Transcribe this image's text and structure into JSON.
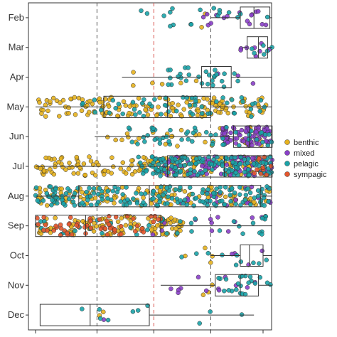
{
  "chart_data": {
    "type": "scatter",
    "subtype": "horizontal boxplot with jittered points",
    "title": "",
    "xlabel": "",
    "ylabel": "",
    "categories": [
      "Feb",
      "Mar",
      "Apr",
      "May",
      "Jun",
      "Jul",
      "Aug",
      "Sep",
      "Oct",
      "Nov",
      "Dec"
    ],
    "x_range": [
      0,
      1
    ],
    "reference_lines": [
      {
        "x": 0.27,
        "style": "dashed",
        "color": "#555555"
      },
      {
        "x": 0.52,
        "style": "dashed",
        "color": "#d9534f"
      },
      {
        "x": 0.77,
        "style": "dashed",
        "color": "#555555"
      }
    ],
    "boxes": [
      {
        "month": "Feb",
        "min": 0.77,
        "q1": 0.9,
        "median": 0.96,
        "q3": 1.03,
        "max": 1.04
      },
      {
        "month": "Mar",
        "min": 0.91,
        "q1": 0.93,
        "median": 0.98,
        "q3": 1.02,
        "max": 1.04
      },
      {
        "month": "Apr",
        "min": 0.38,
        "q1": 0.73,
        "median": 0.77,
        "q3": 0.86,
        "max": 1.04
      },
      {
        "month": "May",
        "min": 0.0,
        "q1": 0.3,
        "median": 0.58,
        "q3": 0.77,
        "max": 1.04
      },
      {
        "month": "Jun",
        "min": 0.26,
        "q1": 0.87,
        "median": 0.94,
        "q3": 1.04,
        "max": 1.04
      },
      {
        "month": "Jul",
        "min": 0.0,
        "q1": 0.58,
        "median": 0.83,
        "q3": 1.04,
        "max": 1.04
      },
      {
        "month": "Aug",
        "min": 0.0,
        "q1": 0.19,
        "median": 0.5,
        "q3": 0.99,
        "max": 1.04
      },
      {
        "month": "Sep",
        "min": 0.0,
        "q1": 0.0,
        "median": 0.22,
        "q3": 0.55,
        "max": 1.04
      },
      {
        "month": "Oct",
        "min": 0.77,
        "q1": 0.9,
        "median": 0.94,
        "q3": 1.0,
        "max": 1.04
      },
      {
        "month": "Nov",
        "min": 0.55,
        "q1": 0.79,
        "median": 0.9,
        "q3": 0.98,
        "max": 1.04
      },
      {
        "month": "Dec",
        "min": 0.02,
        "q1": 0.02,
        "median": 0.24,
        "q3": 0.5,
        "max": 0.96
      }
    ],
    "point_clusters": [
      {
        "month": "Feb",
        "groups": [
          {
            "habitat": "benthic",
            "n": 2,
            "from": 0.3,
            "to": 0.98
          },
          {
            "habitat": "mixed",
            "n": 16,
            "from": 0.7,
            "to": 1.04
          },
          {
            "habitat": "pelagic",
            "n": 18,
            "from": 0.27,
            "to": 1.04
          }
        ]
      },
      {
        "month": "Mar",
        "groups": [
          {
            "habitat": "mixed",
            "n": 8,
            "from": 0.9,
            "to": 1.04
          },
          {
            "habitat": "pelagic",
            "n": 6,
            "from": 0.93,
            "to": 1.04
          }
        ]
      },
      {
        "month": "Apr",
        "groups": [
          {
            "habitat": "benthic",
            "n": 6,
            "from": 0.38,
            "to": 0.95
          },
          {
            "habitat": "mixed",
            "n": 3,
            "from": 0.8,
            "to": 1.02
          },
          {
            "habitat": "pelagic",
            "n": 28,
            "from": 0.55,
            "to": 0.9
          }
        ]
      },
      {
        "month": "May",
        "groups": [
          {
            "habitat": "benthic",
            "n": 150,
            "from": 0.0,
            "to": 1.02
          },
          {
            "habitat": "pelagic",
            "n": 55,
            "from": 0.2,
            "to": 1.04
          }
        ]
      },
      {
        "month": "Jun",
        "groups": [
          {
            "habitat": "benthic",
            "n": 30,
            "from": 0.25,
            "to": 1.0
          },
          {
            "habitat": "mixed",
            "n": 80,
            "from": 0.82,
            "to": 1.04
          },
          {
            "habitat": "pelagic",
            "n": 50,
            "from": 0.4,
            "to": 1.04
          }
        ]
      },
      {
        "month": "Jul",
        "groups": [
          {
            "habitat": "benthic",
            "n": 170,
            "from": 0.0,
            "to": 1.04
          },
          {
            "habitat": "mixed",
            "n": 90,
            "from": 0.55,
            "to": 1.04
          },
          {
            "habitat": "pelagic",
            "n": 150,
            "from": 0.45,
            "to": 1.04
          },
          {
            "habitat": "sympagic",
            "n": 10,
            "from": 0.95,
            "to": 1.04
          }
        ]
      },
      {
        "month": "Aug",
        "groups": [
          {
            "habitat": "benthic",
            "n": 140,
            "from": 0.0,
            "to": 1.04
          },
          {
            "habitat": "mixed",
            "n": 20,
            "from": 0.6,
            "to": 1.04
          },
          {
            "habitat": "pelagic",
            "n": 170,
            "from": 0.0,
            "to": 1.04
          }
        ]
      },
      {
        "month": "Sep",
        "groups": [
          {
            "habitat": "benthic",
            "n": 120,
            "from": 0.0,
            "to": 0.65
          },
          {
            "habitat": "mixed",
            "n": 12,
            "from": 0.3,
            "to": 1.0
          },
          {
            "habitat": "pelagic",
            "n": 40,
            "from": 0.0,
            "to": 1.04
          },
          {
            "habitat": "sympagic",
            "n": 60,
            "from": 0.0,
            "to": 0.55
          }
        ]
      },
      {
        "month": "Oct",
        "groups": [
          {
            "habitat": "benthic",
            "n": 4,
            "from": 0.65,
            "to": 0.9
          },
          {
            "habitat": "mixed",
            "n": 4,
            "from": 0.85,
            "to": 1.0
          },
          {
            "habitat": "pelagic",
            "n": 10,
            "from": 0.6,
            "to": 1.04
          }
        ]
      },
      {
        "month": "Nov",
        "groups": [
          {
            "habitat": "benthic",
            "n": 3,
            "from": 0.7,
            "to": 0.9
          },
          {
            "habitat": "mixed",
            "n": 12,
            "from": 0.55,
            "to": 1.04
          },
          {
            "habitat": "pelagic",
            "n": 22,
            "from": 0.75,
            "to": 1.04
          }
        ]
      },
      {
        "month": "Dec",
        "groups": [
          {
            "habitat": "benthic",
            "n": 2,
            "from": 0.2,
            "to": 0.3
          },
          {
            "habitat": "mixed",
            "n": 1,
            "from": 0.3,
            "to": 0.3
          },
          {
            "habitat": "pelagic",
            "n": 10,
            "from": 0.0,
            "to": 0.96
          }
        ]
      }
    ],
    "legend": {
      "position": "right",
      "entries": [
        {
          "label": "benthic",
          "color": "#E6B11D"
        },
        {
          "label": "mixed",
          "color": "#8A3FC9"
        },
        {
          "label": "pelagic",
          "color": "#1AA3A8"
        },
        {
          "label": "sympagic",
          "color": "#E4572E"
        }
      ]
    },
    "grid": false
  }
}
